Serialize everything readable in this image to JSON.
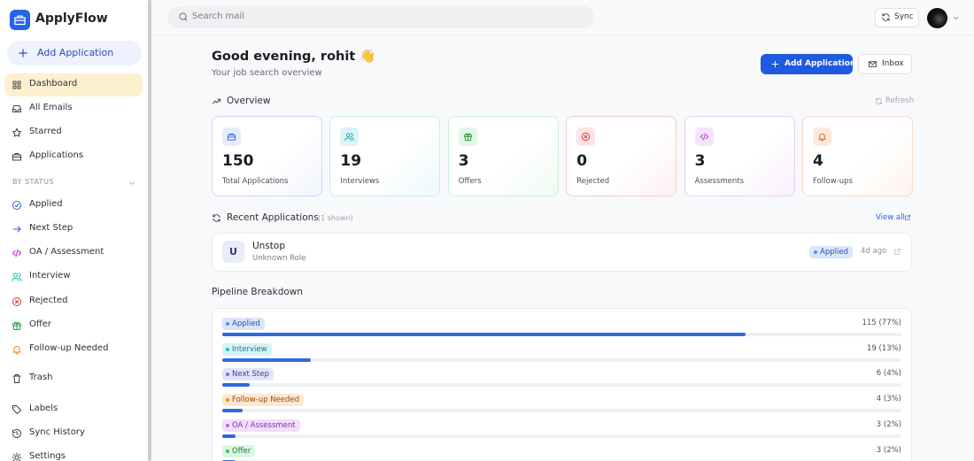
{
  "sidebar": {
    "brand": "ApplyFlow",
    "add_button": "Add Application",
    "nav": [
      "Dashboard",
      "All Emails",
      "Starred",
      "Applications"
    ],
    "status_heading": "BY STATUS",
    "status_nav": [
      "Applied",
      "Next Step",
      "OA / Assessment",
      "Interview",
      "Rejected",
      "Offer",
      "Follow-up Needed"
    ],
    "bottom_nav": [
      "Trash",
      "Labels",
      "Sync History",
      "Settings"
    ]
  },
  "topbar": {
    "search_placeholder": "Search mail",
    "sync": "Sync"
  },
  "header": {
    "greeting": "Good evening, rohit 👋",
    "subtitle": "Your job search overview",
    "add_button": "Add Application",
    "inbox": "Inbox"
  },
  "overview": {
    "title": "Overview",
    "refresh": "Refresh",
    "cards": [
      {
        "value": 150,
        "label": "Total Applications"
      },
      {
        "value": 19,
        "label": "Interviews"
      },
      {
        "value": 3,
        "label": "Offers"
      },
      {
        "value": 0,
        "label": "Rejected"
      },
      {
        "value": 3,
        "label": "Assessments"
      },
      {
        "value": 4,
        "label": "Follow-ups"
      }
    ]
  },
  "recent": {
    "title": "Recent Applications",
    "count_note": "(1 shown)",
    "view_all": "View all",
    "items": [
      {
        "initial": "U",
        "company": "Unstop",
        "role": "Unknown Role",
        "status": "Applied",
        "time": "4d ago"
      }
    ]
  },
  "pipeline": {
    "title": "Pipeline Breakdown",
    "rows": [
      {
        "label": "Applied",
        "count": 115,
        "percent": 77,
        "value_label": "115 (77%)"
      },
      {
        "label": "Interview",
        "count": 19,
        "percent": 13,
        "value_label": "19 (13%)"
      },
      {
        "label": "Next Step",
        "count": 6,
        "percent": 4,
        "value_label": "6 (4%)"
      },
      {
        "label": "Follow-up Needed",
        "count": 4,
        "percent": 3,
        "value_label": "4 (3%)"
      },
      {
        "label": "OA / Assessment",
        "count": 3,
        "percent": 2,
        "value_label": "3 (2%)"
      },
      {
        "label": "Offer",
        "count": 3,
        "percent": 2,
        "value_label": "3 (2%)"
      }
    ]
  }
}
